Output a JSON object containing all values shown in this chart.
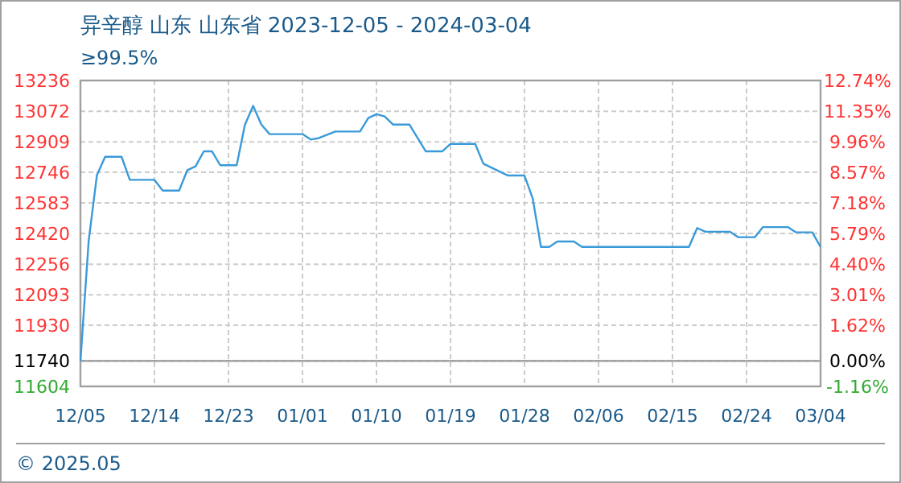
{
  "chart_data": {
    "type": "line",
    "title": "异辛醇 山东 山东省 2023-12-05 - 2024-03-04",
    "subtitle": "≥99.5%",
    "annotations": [
      "© 2025.05"
    ],
    "xlim": [
      "2023-12-05",
      "2024-03-04"
    ],
    "xticks": [
      {
        "value": "2023-12-05",
        "label": "12/05"
      },
      {
        "value": "2023-12-14",
        "label": "12/14"
      },
      {
        "value": "2023-12-23",
        "label": "12/23"
      },
      {
        "value": "2024-01-01",
        "label": "01/01"
      },
      {
        "value": "2024-01-10",
        "label": "01/10"
      },
      {
        "value": "2024-01-19",
        "label": "01/19"
      },
      {
        "value": "2024-01-28",
        "label": "01/28"
      },
      {
        "value": "2024-02-06",
        "label": "02/06"
      },
      {
        "value": "2024-02-15",
        "label": "02/15"
      },
      {
        "value": "2024-02-24",
        "label": "02/24"
      },
      {
        "value": "2024-03-04",
        "label": "03/04"
      }
    ],
    "ylim": [
      11604,
      13236
    ],
    "yticks": [
      11604,
      11740,
      11930,
      12093,
      12256,
      12420,
      12583,
      12746,
      12909,
      13072,
      13236
    ],
    "y2lim": [
      -1.16,
      12.74
    ],
    "y2ticks": [
      {
        "value": -1.16,
        "label": "-1.16%"
      },
      {
        "value": 0,
        "label": "0.00%"
      },
      {
        "value": 1.62,
        "label": "1.62%"
      },
      {
        "value": 3.01,
        "label": "3.01%"
      },
      {
        "value": 4.4,
        "label": "4.40%"
      },
      {
        "value": 5.79,
        "label": "5.79%"
      },
      {
        "value": 7.18,
        "label": "7.18%"
      },
      {
        "value": 8.57,
        "label": "8.57%"
      },
      {
        "value": 9.96,
        "label": "9.96%"
      },
      {
        "value": 11.35,
        "label": "11.35%"
      },
      {
        "value": 12.74,
        "label": "12.74%"
      }
    ],
    "grid": true,
    "ref_lines": [
      {
        "axis": "y",
        "value": 11740,
        "color": "#999999"
      }
    ],
    "series": [
      {
        "color": "#3a9ad9",
        "x": [
          "2023-12-05",
          "2023-12-06",
          "2023-12-07",
          "2023-12-08",
          "2023-12-10",
          "2023-12-11",
          "2023-12-14",
          "2023-12-15",
          "2023-12-17",
          "2023-12-18",
          "2023-12-19",
          "2023-12-20",
          "2023-12-21",
          "2023-12-22",
          "2023-12-24",
          "2023-12-25",
          "2023-12-26",
          "2023-12-27",
          "2023-12-28",
          "2024-01-01",
          "2024-01-02",
          "2024-01-03",
          "2024-01-05",
          "2024-01-08",
          "2024-01-09",
          "2024-01-10",
          "2024-01-11",
          "2024-01-12",
          "2024-01-14",
          "2024-01-16",
          "2024-01-18",
          "2024-01-19",
          "2024-01-22",
          "2024-01-23",
          "2024-01-26",
          "2024-01-28",
          "2024-01-29",
          "2024-01-30",
          "2024-01-31",
          "2024-02-01",
          "2024-02-03",
          "2024-02-04",
          "2024-02-17",
          "2024-02-18",
          "2024-02-19",
          "2024-02-22",
          "2024-02-23",
          "2024-02-25",
          "2024-02-26",
          "2024-02-29",
          "2024-03-01",
          "2024-03-03",
          "2024-03-04"
        ],
        "values": [
          11740,
          12380,
          12730,
          12829,
          12829,
          12706,
          12706,
          12649,
          12649,
          12758,
          12778,
          12858,
          12858,
          12784,
          12784,
          13000,
          13101,
          13001,
          12950,
          12950,
          12921,
          12929,
          12964,
          12964,
          13036,
          13056,
          13044,
          13001,
          13001,
          12858,
          12858,
          12898,
          12898,
          12792,
          12729,
          12729,
          12606,
          12348,
          12348,
          12377,
          12377,
          12348,
          12348,
          12449,
          12429,
          12429,
          12400,
          12400,
          12454,
          12454,
          12426,
          12426,
          12348
        ]
      }
    ]
  }
}
